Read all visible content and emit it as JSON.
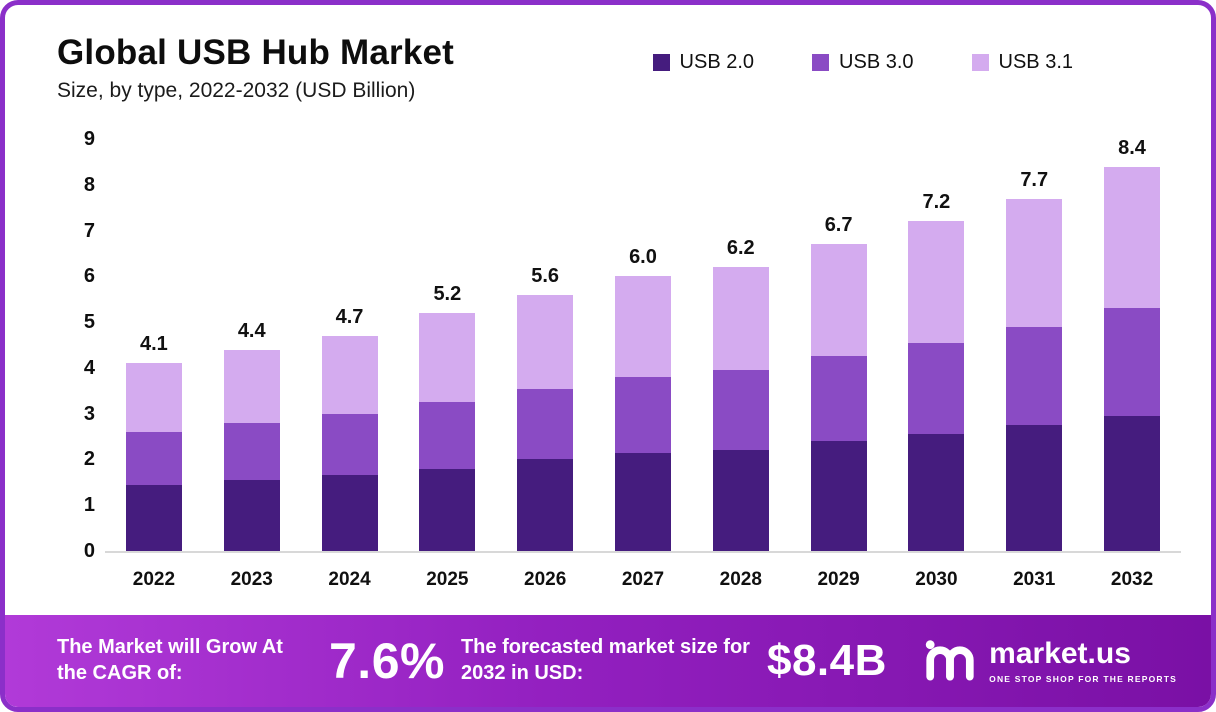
{
  "header": {
    "title": "Global USB Hub Market",
    "subtitle": "Size, by type, 2022-2032 (USD Billion)"
  },
  "chart_data": {
    "type": "bar",
    "stacked": true,
    "title": "Global USB Hub Market Size, by type, 2022-2032 (USD Billion)",
    "categories": [
      "2022",
      "2023",
      "2024",
      "2025",
      "2026",
      "2027",
      "2028",
      "2029",
      "2030",
      "2031",
      "2032"
    ],
    "series": [
      {
        "name": "USB 2.0",
        "color": "#451c7e",
        "values": [
          1.45,
          1.55,
          1.65,
          1.8,
          2.0,
          2.15,
          2.2,
          2.4,
          2.55,
          2.75,
          2.95
        ]
      },
      {
        "name": "USB 3.0",
        "color": "#8a4bc4",
        "values": [
          1.15,
          1.25,
          1.35,
          1.45,
          1.55,
          1.65,
          1.75,
          1.85,
          2.0,
          2.15,
          2.35
        ]
      },
      {
        "name": "USB 3.1",
        "color": "#d4abef",
        "values": [
          1.5,
          1.6,
          1.7,
          1.95,
          2.05,
          2.2,
          2.25,
          2.45,
          2.65,
          2.8,
          3.1
        ]
      }
    ],
    "totals": [
      "4.1",
      "4.4",
      "4.7",
      "5.2",
      "5.6",
      "6.0",
      "6.2",
      "6.7",
      "7.2",
      "7.7",
      "8.4"
    ],
    "xlabel": "",
    "ylabel": "",
    "ylim": [
      0,
      9
    ],
    "yticks": [
      "9",
      "8",
      "7",
      "6",
      "5",
      "4",
      "3",
      "2",
      "1",
      "0"
    ],
    "grid": false,
    "legend_position": "top-right"
  },
  "footer": {
    "cagr_label": "The Market will Grow At the CAGR of:",
    "cagr_value": "7.6%",
    "forecast_label": "The forecasted market size for 2032 in USD:",
    "forecast_value": "$8.4B",
    "brand": "market.us",
    "brand_tagline": "ONE STOP SHOP FOR THE REPORTS"
  }
}
